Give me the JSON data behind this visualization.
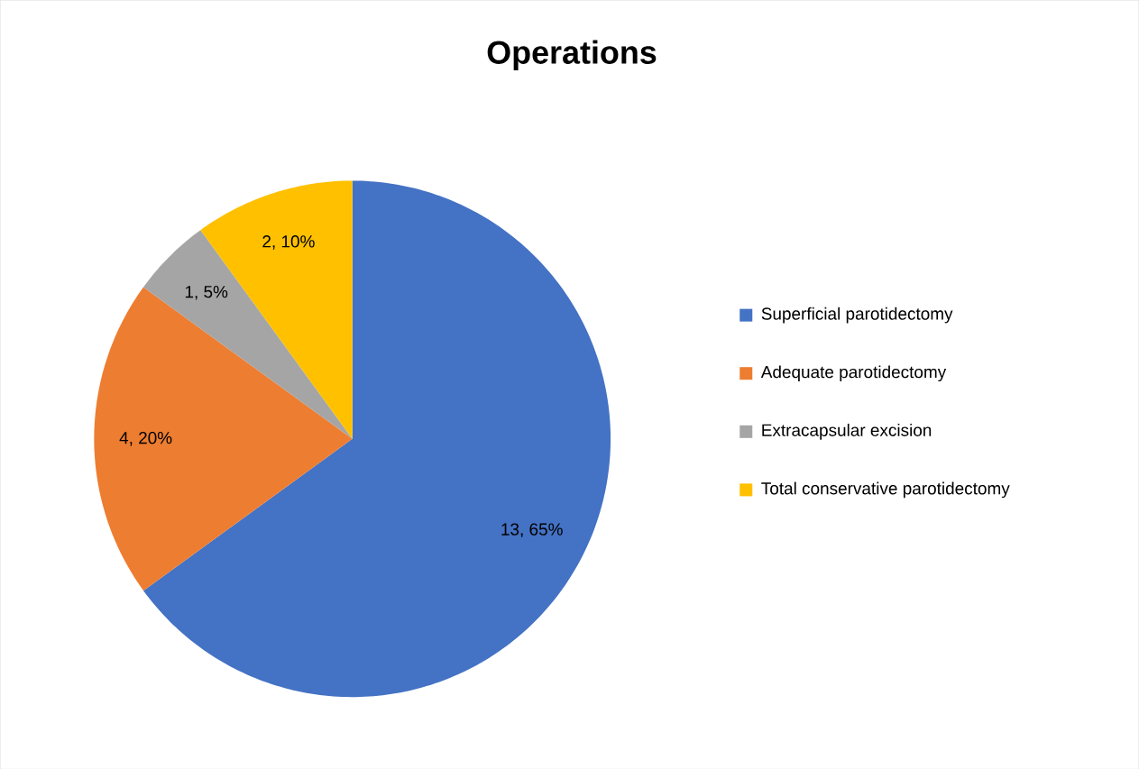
{
  "chart_data": {
    "type": "pie",
    "title": "Operations",
    "categories": [
      "Superficial parotidectomy",
      "Adequate parotidectomy",
      "Extracapsular excision",
      "Total conservative parotidectomy"
    ],
    "values": [
      13,
      4,
      1,
      2
    ],
    "colors": [
      "#4472c4",
      "#ed7d31",
      "#a5a5a5",
      "#ffc000"
    ],
    "value_labels": [
      "13, 65%",
      "4, 20%",
      "1, 5%",
      "2, 10%"
    ],
    "legend": "right"
  }
}
